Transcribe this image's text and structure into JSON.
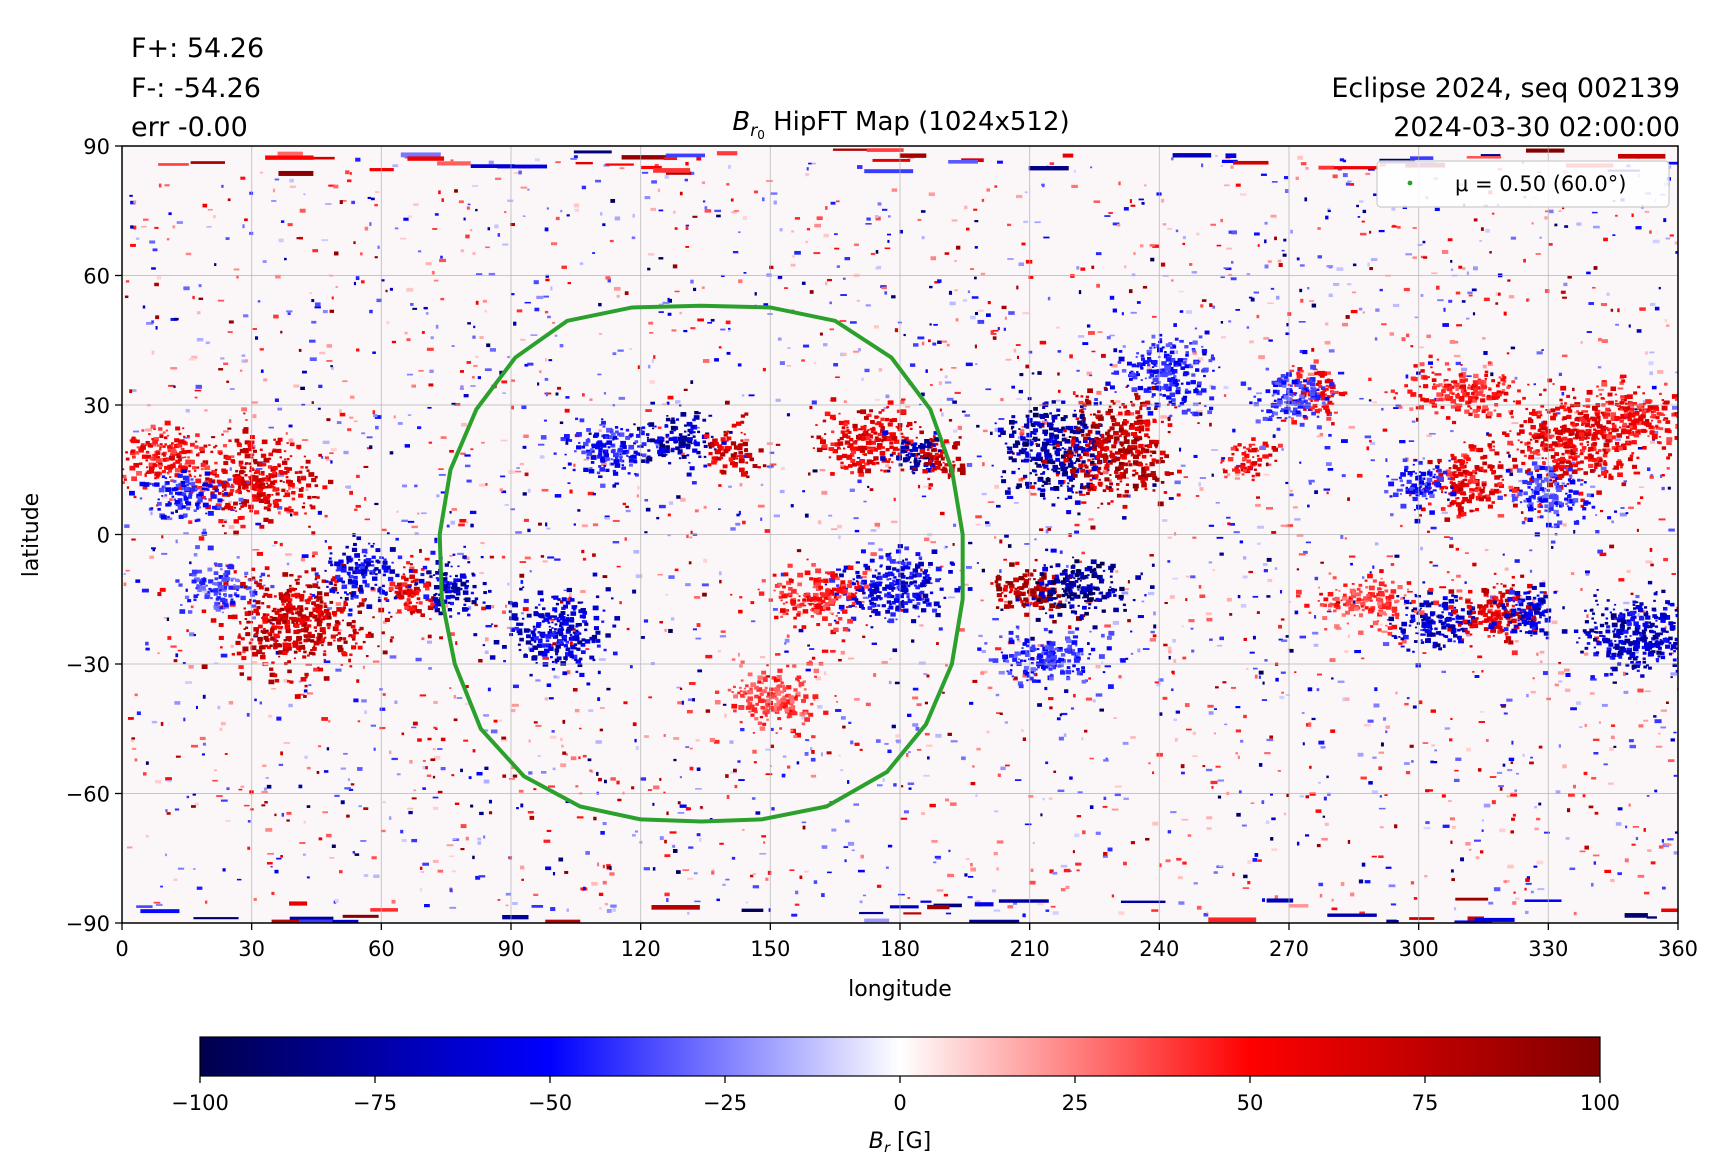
{
  "header": {
    "flux_pos": "F+: 54.26",
    "flux_neg": "F-: -54.26",
    "err": "err -0.00",
    "title_symbol": "B",
    "title_subscript": "r",
    "title_subscript2": "0",
    "title_rest": " HipFT Map (1024x512)",
    "seq": "Eclipse 2024, seq 002139",
    "datetime": "2024-03-30 02:00:00"
  },
  "chart_data": {
    "type": "heatmap",
    "xlabel": "longitude",
    "ylabel": "latitude",
    "xlim": [
      0,
      360
    ],
    "ylim": [
      -90,
      90
    ],
    "xticks": [
      0,
      30,
      60,
      90,
      120,
      150,
      180,
      210,
      240,
      270,
      300,
      330,
      360
    ],
    "yticks": [
      -90,
      -60,
      -30,
      0,
      30,
      60,
      90
    ],
    "grid": true,
    "legend": {
      "position": "top-right",
      "entry": "μ = 0.50 (60.0°)",
      "color": "#2ca02c"
    },
    "mu_contour": {
      "color": "#2ca02c",
      "center_lon": 134,
      "points": [
        [
          134,
          53
        ],
        [
          150,
          52.6
        ],
        [
          165,
          49.5
        ],
        [
          178,
          41
        ],
        [
          187,
          29
        ],
        [
          192,
          15
        ],
        [
          194.5,
          0
        ],
        [
          194.5,
          -15
        ],
        [
          192,
          -30
        ],
        [
          186,
          -44
        ],
        [
          177,
          -55
        ],
        [
          163,
          -63
        ],
        [
          148,
          -66
        ],
        [
          134,
          -66.5
        ],
        [
          120,
          -66
        ],
        [
          106,
          -63
        ],
        [
          93,
          -56
        ],
        [
          83,
          -45
        ],
        [
          77,
          -30
        ],
        [
          74,
          -15
        ],
        [
          73.5,
          0
        ],
        [
          76,
          15
        ],
        [
          82,
          29
        ],
        [
          91,
          41
        ],
        [
          103,
          49.5
        ],
        [
          118,
          52.6
        ],
        [
          134,
          53
        ]
      ]
    },
    "colorbar": {
      "label_symbol": "B",
      "label_subscript": "r",
      "label_rest": " [G]",
      "min": -100,
      "max": 100,
      "ticks": [
        -100,
        -75,
        -50,
        -25,
        0,
        25,
        50,
        75,
        100
      ],
      "colors": [
        "#00004c",
        "#0000ff",
        "#ffffff",
        "#ff0000",
        "#800000"
      ]
    },
    "regions": [
      {
        "lon": 128,
        "lat": 22,
        "sign": -1,
        "rx": 8,
        "ry": 5,
        "strength": 85
      },
      {
        "lon": 140,
        "lat": 20,
        "sign": 1,
        "rx": 5,
        "ry": 5,
        "strength": 80
      },
      {
        "lon": 112,
        "lat": 20,
        "sign": -1,
        "rx": 8,
        "ry": 6,
        "strength": 55
      },
      {
        "lon": 172,
        "lat": 22,
        "sign": 1,
        "rx": 10,
        "ry": 7,
        "strength": 70
      },
      {
        "lon": 183,
        "lat": 19,
        "sign": -1,
        "rx": 5,
        "ry": 4,
        "strength": 85
      },
      {
        "lon": 189,
        "lat": 18,
        "sign": 1,
        "rx": 5,
        "ry": 5,
        "strength": 85
      },
      {
        "lon": 215,
        "lat": 20,
        "sign": -1,
        "rx": 11,
        "ry": 10,
        "strength": 90
      },
      {
        "lon": 230,
        "lat": 20,
        "sign": 1,
        "rx": 11,
        "ry": 10,
        "strength": 90
      },
      {
        "lon": 210,
        "lat": -12,
        "sign": 1,
        "rx": 8,
        "ry": 5,
        "strength": 95
      },
      {
        "lon": 221,
        "lat": -12,
        "sign": -1,
        "rx": 10,
        "ry": 6,
        "strength": 98
      },
      {
        "lon": 30,
        "lat": 13,
        "sign": 1,
        "rx": 12,
        "ry": 9,
        "strength": 75
      },
      {
        "lon": 10,
        "lat": 18,
        "sign": 1,
        "rx": 10,
        "ry": 6,
        "strength": 60
      },
      {
        "lon": 15,
        "lat": 10,
        "sign": -1,
        "rx": 8,
        "ry": 5,
        "strength": 55
      },
      {
        "lon": 40,
        "lat": -20,
        "sign": 1,
        "rx": 14,
        "ry": 10,
        "strength": 85
      },
      {
        "lon": 55,
        "lat": -8,
        "sign": -1,
        "rx": 8,
        "ry": 6,
        "strength": 70
      },
      {
        "lon": 66,
        "lat": -13,
        "sign": 1,
        "rx": 6,
        "ry": 5,
        "strength": 70
      },
      {
        "lon": 76,
        "lat": -12,
        "sign": -1,
        "rx": 6,
        "ry": 6,
        "strength": 80
      },
      {
        "lon": 100,
        "lat": -22,
        "sign": -1,
        "rx": 10,
        "ry": 8,
        "strength": 75
      },
      {
        "lon": 178,
        "lat": -12,
        "sign": -1,
        "rx": 12,
        "ry": 7,
        "strength": 70
      },
      {
        "lon": 160,
        "lat": -14,
        "sign": 1,
        "rx": 10,
        "ry": 6,
        "strength": 55
      },
      {
        "lon": 150,
        "lat": -38,
        "sign": 1,
        "rx": 10,
        "ry": 6,
        "strength": 45
      },
      {
        "lon": 260,
        "lat": 18,
        "sign": 1,
        "rx": 5,
        "ry": 4,
        "strength": 65
      },
      {
        "lon": 276,
        "lat": 33,
        "sign": 1,
        "rx": 6,
        "ry": 5,
        "strength": 60
      },
      {
        "lon": 242,
        "lat": 38,
        "sign": -1,
        "rx": 10,
        "ry": 7,
        "strength": 55
      },
      {
        "lon": 270,
        "lat": 32,
        "sign": -1,
        "rx": 8,
        "ry": 6,
        "strength": 50
      },
      {
        "lon": 310,
        "lat": 12,
        "sign": 1,
        "rx": 8,
        "ry": 7,
        "strength": 70
      },
      {
        "lon": 300,
        "lat": 12,
        "sign": -1,
        "rx": 6,
        "ry": 5,
        "strength": 55
      },
      {
        "lon": 335,
        "lat": 22,
        "sign": 1,
        "rx": 14,
        "ry": 10,
        "strength": 70
      },
      {
        "lon": 350,
        "lat": 28,
        "sign": 1,
        "rx": 10,
        "ry": 6,
        "strength": 60
      },
      {
        "lon": 310,
        "lat": 34,
        "sign": 1,
        "rx": 12,
        "ry": 5,
        "strength": 55
      },
      {
        "lon": 330,
        "lat": 10,
        "sign": -1,
        "rx": 8,
        "ry": 6,
        "strength": 50
      },
      {
        "lon": 303,
        "lat": -20,
        "sign": -1,
        "rx": 8,
        "ry": 6,
        "strength": 80
      },
      {
        "lon": 318,
        "lat": -18,
        "sign": 1,
        "rx": 8,
        "ry": 6,
        "strength": 75
      },
      {
        "lon": 325,
        "lat": -18,
        "sign": -1,
        "rx": 6,
        "ry": 5,
        "strength": 70
      },
      {
        "lon": 350,
        "lat": -23,
        "sign": -1,
        "rx": 12,
        "ry": 8,
        "strength": 80
      },
      {
        "lon": 215,
        "lat": -28,
        "sign": -1,
        "rx": 12,
        "ry": 5,
        "strength": 50
      },
      {
        "lon": 288,
        "lat": -15,
        "sign": 1,
        "rx": 10,
        "ry": 5,
        "strength": 45
      },
      {
        "lon": 22,
        "lat": -12,
        "sign": -1,
        "rx": 8,
        "ry": 5,
        "strength": 45
      }
    ]
  }
}
